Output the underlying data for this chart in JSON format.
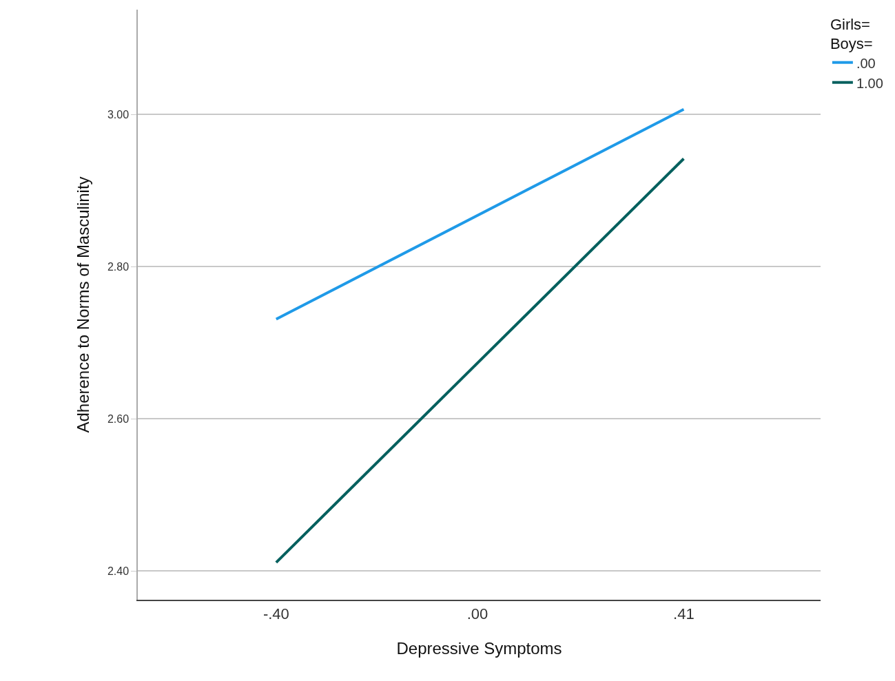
{
  "chart_data": {
    "type": "line",
    "xlabel": "Depressive Symptoms",
    "ylabel": "Adherence to Norms of Masculinity",
    "legend_title": "Girls=\nBoys=",
    "x": [
      -0.4,
      0.41
    ],
    "series": [
      {
        "name": ".00",
        "color": "#1f9ae8",
        "values": [
          2.731,
          3.007
        ]
      },
      {
        "name": "1.00",
        "color": "#05605e",
        "values": [
          2.411,
          2.942
        ]
      }
    ],
    "xlim": [
      -0.675,
      0.682
    ],
    "xticks": [
      {
        "value": -0.4,
        "label": "-.40"
      },
      {
        "value": 0.0,
        "label": ".00"
      },
      {
        "value": 0.41,
        "label": ".41"
      }
    ],
    "ylim": [
      2.362,
      3.138
    ],
    "yticks": [
      {
        "value": 2.4,
        "label": "2.40"
      },
      {
        "value": 2.6,
        "label": "2.60"
      },
      {
        "value": 2.8,
        "label": "2.80"
      },
      {
        "value": 3.0,
        "label": "3.00"
      }
    ],
    "grid": "y",
    "legend": "top right",
    "marker": "none",
    "line_style": "solid"
  }
}
